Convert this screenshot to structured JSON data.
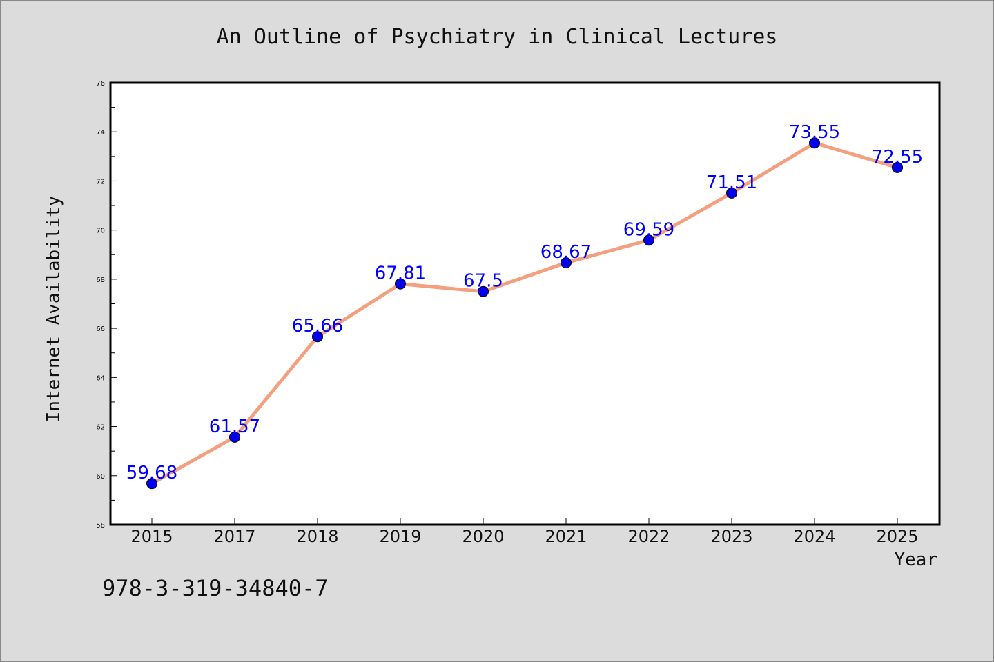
{
  "chart_data": {
    "type": "line",
    "title": "An Outline of Psychiatry in Clinical Lectures",
    "xlabel": "Year",
    "ylabel": "Internet Availability",
    "categories": [
      "2015",
      "2017",
      "2018",
      "2019",
      "2020",
      "2021",
      "2022",
      "2023",
      "2024",
      "2025"
    ],
    "series": [
      {
        "values": [
          59.68,
          61.57,
          65.66,
          67.81,
          67.5,
          68.67,
          69.59,
          71.51,
          73.55,
          72.55
        ],
        "data_labels": [
          "59.68",
          "61.57",
          "65.66",
          "67.81",
          "67.5",
          "68.67",
          "69.59",
          "71.51",
          "73.55",
          "72.55"
        ],
        "line_color": "#f4a07e",
        "marker_color": "#0000ee"
      }
    ],
    "ylim": [
      58,
      76
    ],
    "yticks": [
      "58",
      "60",
      "62",
      "64",
      "66",
      "68",
      "70",
      "72",
      "74",
      "76"
    ],
    "grid": false,
    "legend": "none"
  },
  "footer_text": "978-3-319-34840-7",
  "colors": {
    "background": "#dcdcdc",
    "plot_area": "#ffffff",
    "data_label": "#0000ff"
  }
}
